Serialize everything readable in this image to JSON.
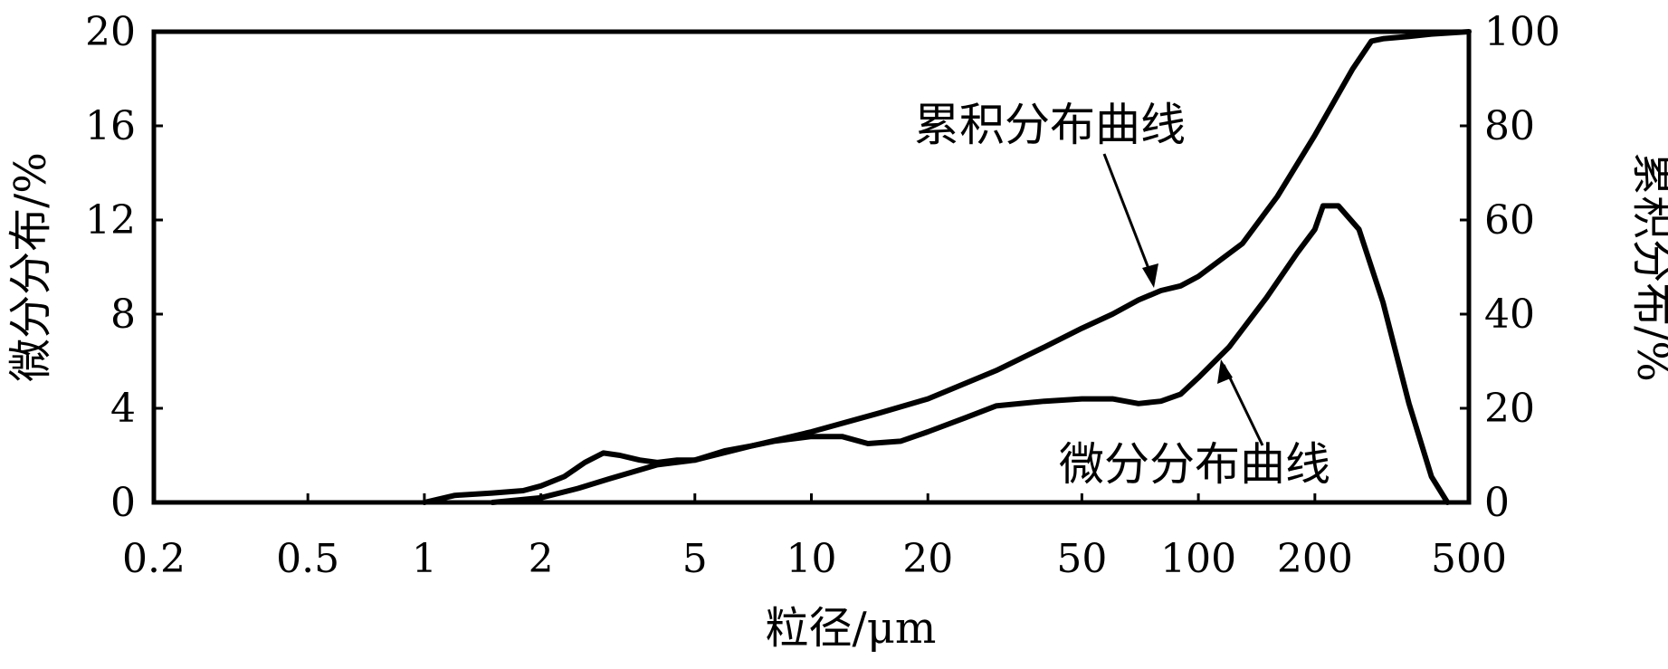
{
  "chart_data": {
    "type": "line",
    "xlabel": "粒径/μm",
    "ylabel_left": "微分分布/%",
    "ylabel_right": "累积分布/%",
    "x_scale": "log",
    "xlim": [
      0.2,
      500
    ],
    "ylim_left": [
      0,
      20
    ],
    "ylim_right": [
      0,
      100
    ],
    "x_ticks": [
      "0.2",
      "0.5",
      "1",
      "2",
      "5",
      "10",
      "20",
      "50",
      "100",
      "200",
      "500"
    ],
    "x_tick_values": [
      0.2,
      0.5,
      1,
      2,
      5,
      10,
      20,
      50,
      100,
      200,
      500
    ],
    "y_left_ticks": [
      "0",
      "4",
      "8",
      "12",
      "16",
      "20"
    ],
    "y_left_tick_values": [
      0,
      4,
      8,
      12,
      16,
      20
    ],
    "y_right_ticks": [
      "0",
      "20",
      "40",
      "60",
      "80",
      "100"
    ],
    "y_right_tick_values": [
      0,
      20,
      40,
      60,
      80,
      100
    ],
    "grid": false,
    "series": [
      {
        "name": "微分分布曲线",
        "axis": "left",
        "x": [
          1.0,
          1.2,
          1.5,
          1.8,
          2.0,
          2.3,
          2.6,
          2.9,
          3.2,
          3.6,
          4.0,
          4.5,
          5.0,
          6.0,
          7.0,
          8.0,
          10.0,
          12.0,
          14.0,
          17.0,
          20.0,
          25.0,
          30.0,
          40.0,
          50.0,
          60.0,
          70.0,
          80.0,
          90.0,
          100.0,
          120.0,
          150.0,
          180.0,
          200.0,
          210.0,
          230.0,
          260.0,
          300.0,
          350.0,
          400.0,
          440.0
        ],
        "y": [
          0.0,
          0.3,
          0.4,
          0.5,
          0.7,
          1.1,
          1.7,
          2.1,
          2.0,
          1.8,
          1.7,
          1.8,
          1.8,
          2.2,
          2.4,
          2.6,
          2.8,
          2.8,
          2.5,
          2.6,
          3.0,
          3.6,
          4.1,
          4.3,
          4.4,
          4.4,
          4.2,
          4.3,
          4.6,
          5.3,
          6.6,
          8.7,
          10.6,
          11.6,
          12.6,
          12.6,
          11.6,
          8.5,
          4.2,
          1.1,
          0.0
        ]
      },
      {
        "name": "累积分布曲线",
        "axis": "right",
        "x": [
          1.5,
          2.0,
          2.5,
          3.0,
          4.0,
          5.0,
          7.0,
          10.0,
          15.0,
          20.0,
          30.0,
          40.0,
          50.0,
          60.0,
          70.0,
          80.0,
          90.0,
          100.0,
          130.0,
          160.0,
          200.0,
          250.0,
          280.0,
          300.0,
          350.0,
          400.0,
          500.0
        ],
        "y": [
          0.0,
          1.0,
          3.0,
          5.0,
          8.0,
          9.0,
          12.0,
          15.0,
          19.0,
          22.0,
          28.0,
          33.0,
          37.0,
          40.0,
          43.0,
          45.0,
          46.0,
          48.0,
          55.0,
          65.0,
          78.0,
          92.0,
          98.0,
          98.5,
          99.0,
          99.5,
          100.0
        ]
      }
    ],
    "annotations": [
      {
        "text": "累积分布曲线",
        "series": "累积分布曲线"
      },
      {
        "text": "微分分布曲线",
        "series": "微分分布曲线"
      }
    ]
  }
}
